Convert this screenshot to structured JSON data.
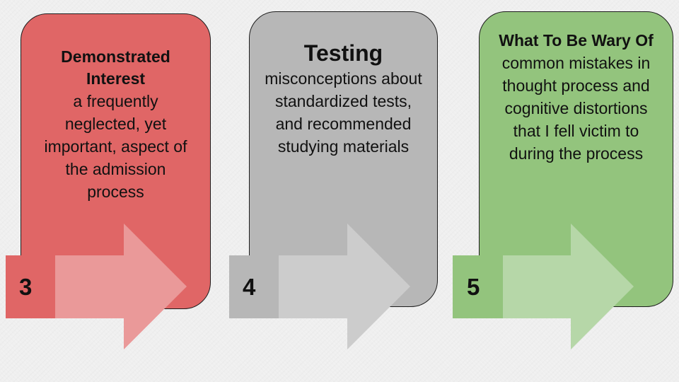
{
  "steps": [
    {
      "number": "3",
      "heading": "Demonstrated Interest",
      "body": "a frequently neglected, yet important, aspect of the admission process",
      "colors": {
        "card": "#e06666",
        "arrow": "#ea9999",
        "badge": "#e06666"
      }
    },
    {
      "number": "4",
      "heading": "Testing",
      "body": "misconceptions about standardized tests, and recommended studying materials",
      "colors": {
        "card": "#b7b7b7",
        "arrow": "#cccccc",
        "badge": "#b7b7b7"
      }
    },
    {
      "number": "5",
      "heading": "What To Be Wary Of",
      "body": "common mistakes in thought process and cognitive distortions that I fell victim to during the process",
      "colors": {
        "card": "#93c47d",
        "arrow": "#b6d7a8",
        "badge": "#93c47d"
      }
    }
  ]
}
